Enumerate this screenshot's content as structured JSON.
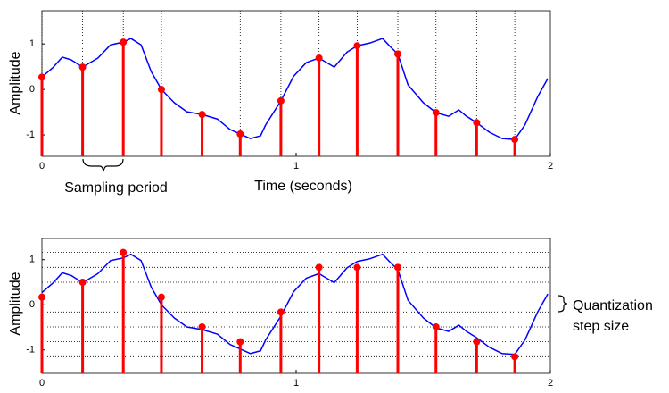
{
  "chart_data": [
    {
      "type": "stem",
      "y_label": "Amplitude",
      "x_label": "Time (seconds)",
      "annotation": "Sampling period",
      "xlim": [
        0,
        2
      ],
      "xticks": [
        0,
        1,
        2
      ],
      "ylim": [
        -1.47,
        1.73
      ],
      "yticks": [
        -1,
        0,
        1
      ],
      "sample_grid": true,
      "signal": {
        "color": "#0000ff",
        "x": [
          0,
          0.045,
          0.08,
          0.115,
          0.16,
          0.22,
          0.27,
          0.32,
          0.35,
          0.39,
          0.43,
          0.47,
          0.52,
          0.57,
          0.63,
          0.69,
          0.74,
          0.78,
          0.82,
          0.86,
          0.88,
          0.94,
          0.99,
          1.04,
          1.09,
          1.15,
          1.2,
          1.24,
          1.29,
          1.34,
          1.37,
          1.4,
          1.44,
          1.5,
          1.55,
          1.6,
          1.64,
          1.67,
          1.71,
          1.76,
          1.81,
          1.86,
          1.9,
          1.95,
          1.99
        ],
        "values": [
          0.27,
          0.49,
          0.71,
          0.65,
          0.49,
          0.69,
          0.98,
          1.04,
          1.12,
          0.98,
          0.39,
          0,
          -0.29,
          -0.49,
          -0.55,
          -0.65,
          -0.88,
          -0.98,
          -1.08,
          -1.02,
          -0.78,
          -0.25,
          0.29,
          0.59,
          0.69,
          0.49,
          0.82,
          0.96,
          1.02,
          1.12,
          0.94,
          0.78,
          0.1,
          -0.29,
          -0.51,
          -0.59,
          -0.45,
          -0.59,
          -0.73,
          -0.94,
          -1.08,
          -1.1,
          -0.78,
          -0.16,
          0.24
        ]
      },
      "samples": {
        "color": "#ff0000",
        "x": [
          0,
          0.16,
          0.32,
          0.47,
          0.63,
          0.78,
          0.94,
          1.09,
          1.24,
          1.4,
          1.55,
          1.71,
          1.86
        ],
        "values": [
          0.27,
          0.49,
          1.04,
          0,
          -0.55,
          -0.98,
          -0.25,
          0.69,
          0.96,
          0.78,
          -0.51,
          -0.73,
          -1.1
        ]
      }
    },
    {
      "type": "stem",
      "y_label": "Amplitude",
      "annotation": [
        "Quantization",
        "step size"
      ],
      "xlim": [
        0,
        2
      ],
      "xticks": [
        0,
        1,
        2
      ],
      "ylim": [
        -1.52,
        1.47
      ],
      "yticks": [
        -1,
        0,
        1
      ],
      "quantization_levels": [
        -1.15,
        -0.82,
        -0.49,
        -0.16,
        0.17,
        0.5,
        0.83,
        1.16
      ],
      "signal": {
        "color": "#0000ff",
        "x": [
          0,
          0.045,
          0.08,
          0.115,
          0.16,
          0.22,
          0.27,
          0.32,
          0.35,
          0.39,
          0.43,
          0.47,
          0.52,
          0.57,
          0.63,
          0.69,
          0.74,
          0.78,
          0.82,
          0.86,
          0.88,
          0.94,
          0.99,
          1.04,
          1.09,
          1.15,
          1.2,
          1.24,
          1.29,
          1.34,
          1.37,
          1.4,
          1.44,
          1.5,
          1.55,
          1.6,
          1.64,
          1.67,
          1.71,
          1.76,
          1.81,
          1.86,
          1.9,
          1.95,
          1.99
        ],
        "values": [
          0.27,
          0.49,
          0.71,
          0.65,
          0.49,
          0.69,
          0.98,
          1.04,
          1.12,
          0.98,
          0.39,
          0,
          -0.29,
          -0.49,
          -0.55,
          -0.65,
          -0.88,
          -0.98,
          -1.08,
          -1.02,
          -0.78,
          -0.25,
          0.29,
          0.59,
          0.69,
          0.49,
          0.82,
          0.96,
          1.02,
          1.12,
          0.94,
          0.78,
          0.1,
          -0.29,
          -0.51,
          -0.59,
          -0.45,
          -0.59,
          -0.73,
          -0.94,
          -1.08,
          -1.1,
          -0.78,
          -0.16,
          0.24
        ]
      },
      "samples": {
        "color": "#ff0000",
        "x": [
          0,
          0.16,
          0.32,
          0.47,
          0.63,
          0.78,
          0.94,
          1.09,
          1.24,
          1.4,
          1.55,
          1.71,
          1.86
        ],
        "values": [
          0.17,
          0.5,
          1.16,
          0.17,
          -0.49,
          -0.82,
          -0.16,
          0.83,
          0.83,
          0.83,
          -0.49,
          -0.82,
          -1.15
        ]
      }
    }
  ]
}
